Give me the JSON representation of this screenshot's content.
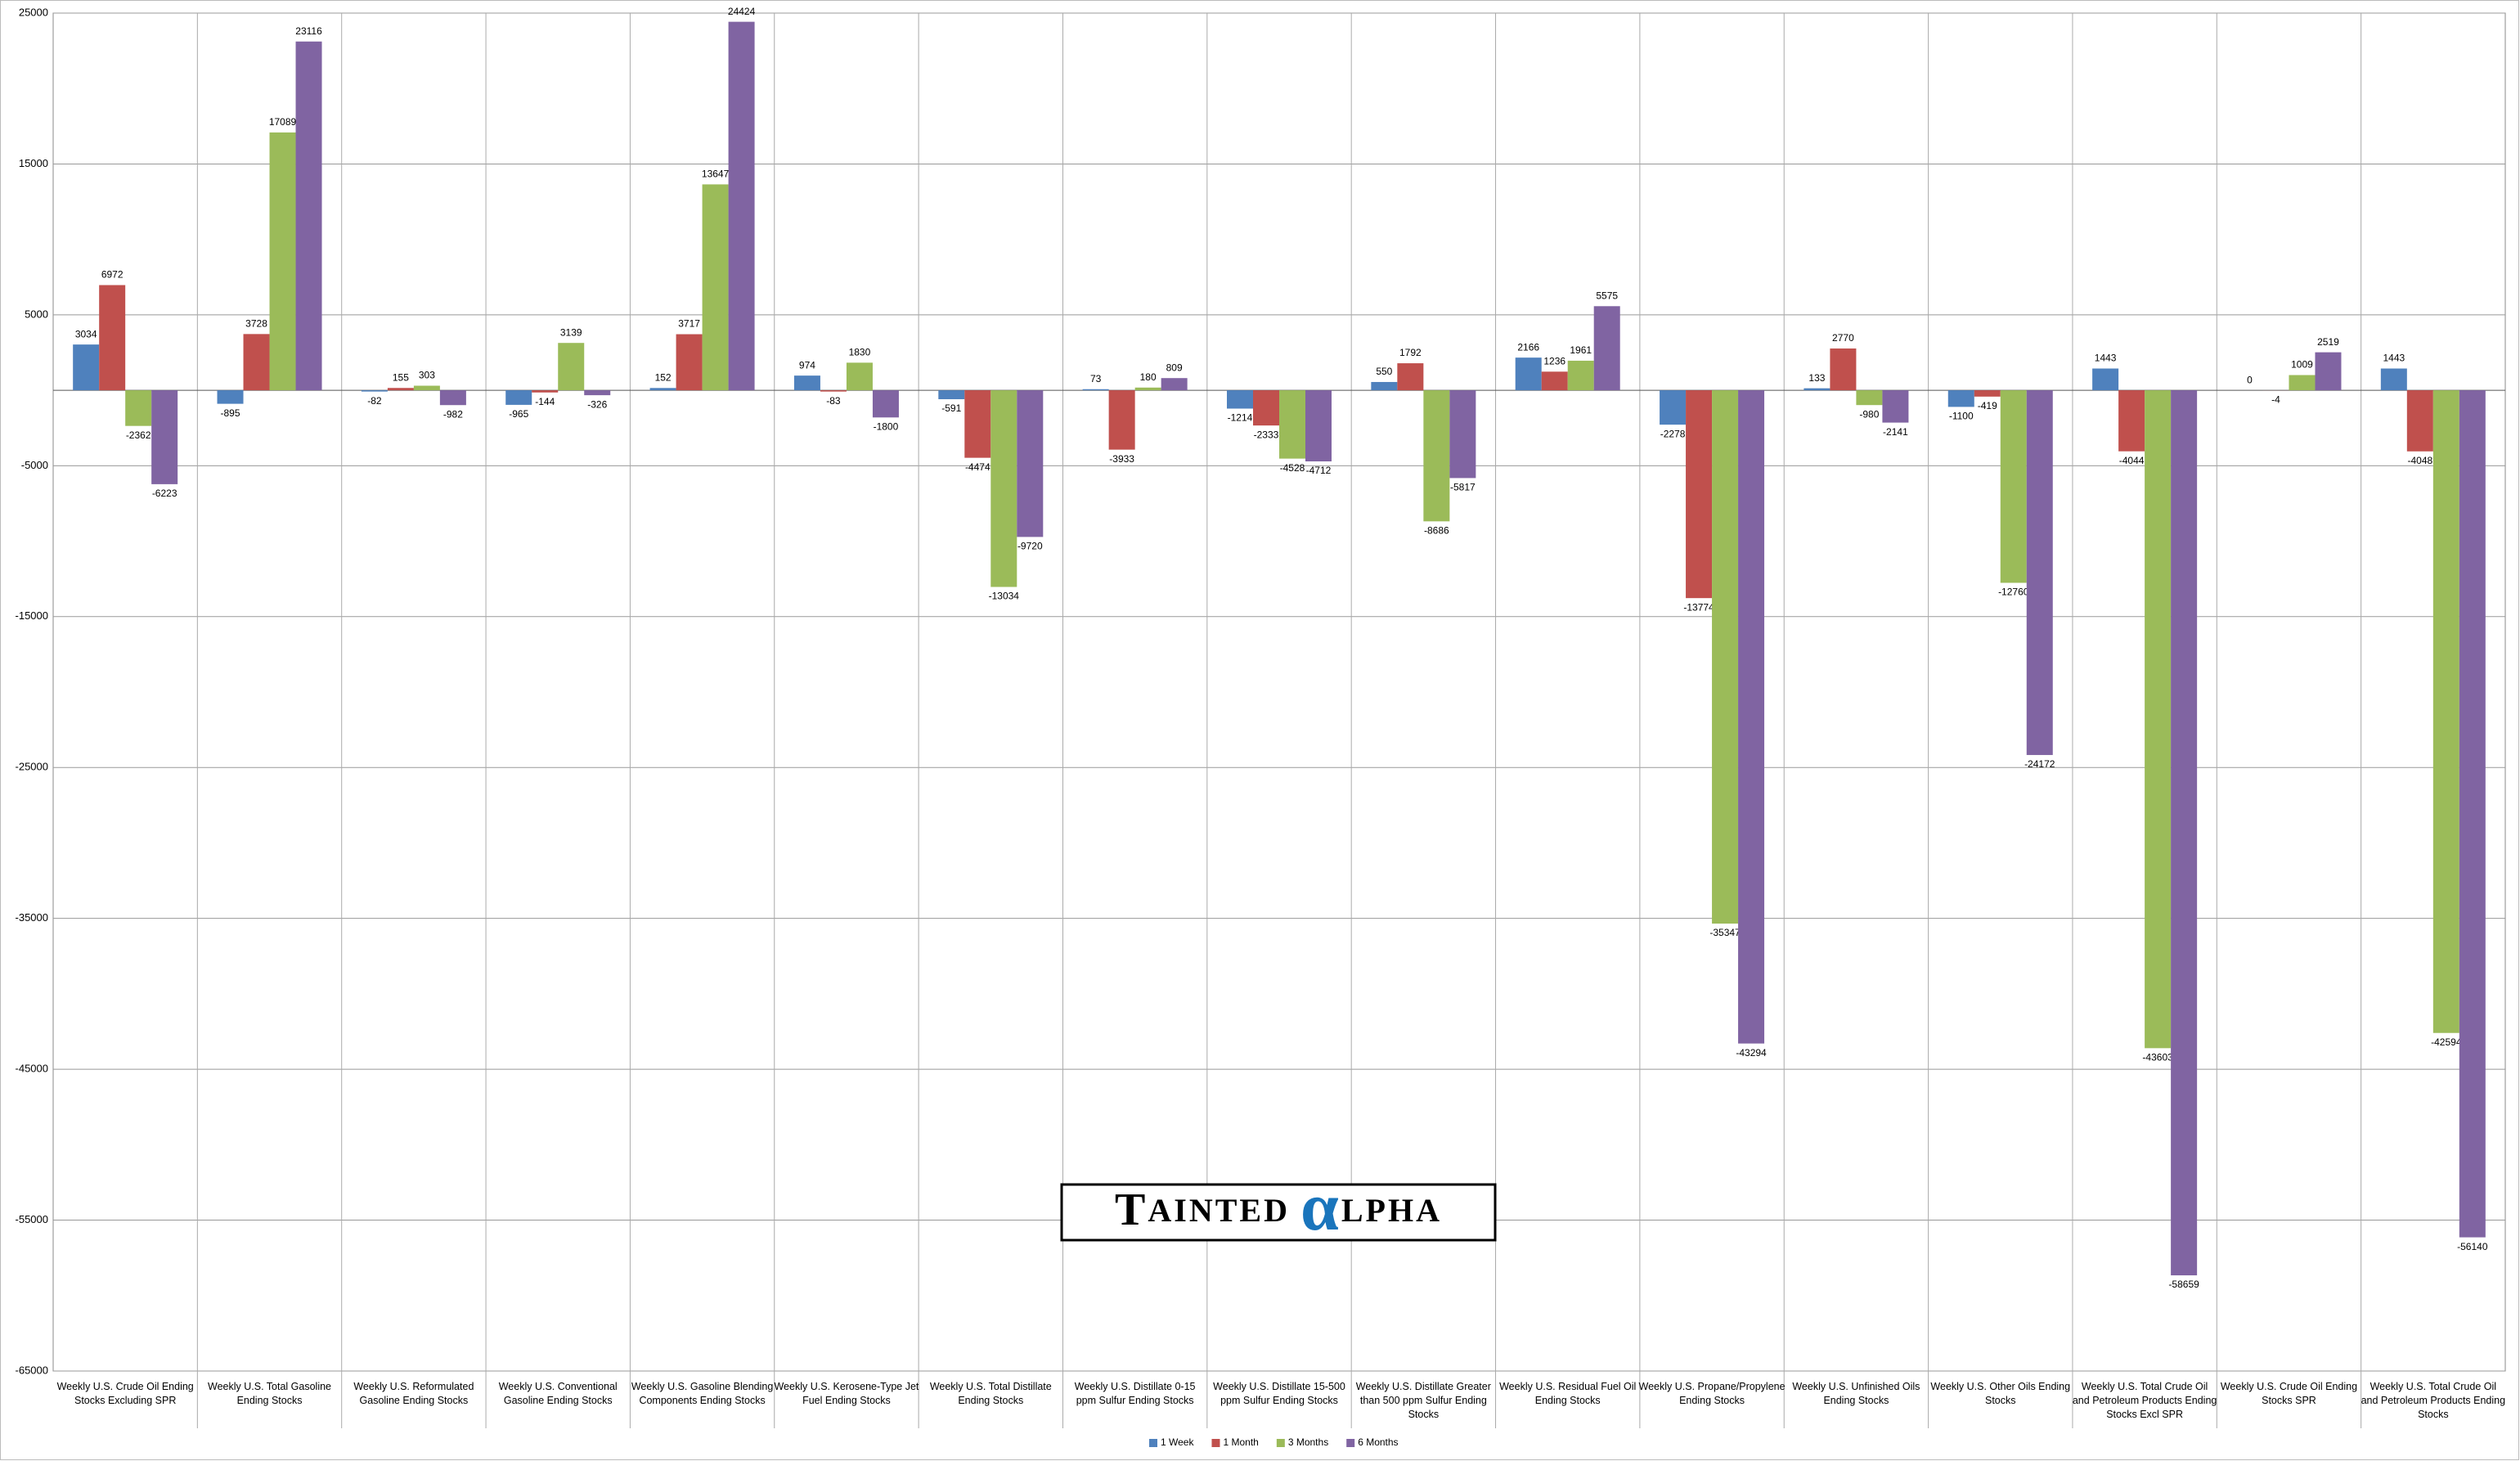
{
  "chart_data": {
    "type": "bar",
    "categories": [
      "Weekly U.S. Crude Oil Ending Stocks Excluding SPR",
      "Weekly U.S. Total Gasoline Ending Stocks",
      "Weekly U.S. Reformulated Gasoline Ending Stocks",
      "Weekly U.S. Conventional Gasoline Ending Stocks",
      "Weekly U.S. Gasoline Blending Components Ending Stocks",
      "Weekly U.S. Kerosene-Type Jet Fuel Ending Stocks",
      "Weekly U.S. Total Distillate Ending Stocks",
      "Weekly U.S. Distillate 0-15 ppm Sulfur Ending Stocks",
      "Weekly U.S. Distillate 15-500 ppm Sulfur Ending Stocks",
      "Weekly U.S. Distillate Greater than 500 ppm Sulfur Ending Stocks",
      "Weekly U.S. Residual Fuel Oil Ending Stocks",
      "Weekly U.S. Propane/Propylene Ending Stocks",
      "Weekly U.S. Unfinished Oils Ending Stocks",
      "Weekly U.S. Other Oils Ending Stocks",
      "Weekly U.S. Total Crude Oil and Petroleum Products Ending Stocks Excl SPR",
      "Weekly U.S. Crude Oil Ending Stocks SPR",
      "Weekly U.S. Total Crude Oil and Petroleum Products Ending Stocks"
    ],
    "series": [
      {
        "name": "1 Week",
        "color": "#4f81bd",
        "values": [
          3034,
          -895,
          -82,
          -965,
          152,
          974,
          -591,
          73,
          -1214,
          550,
          2166,
          -2278,
          133,
          -1100,
          1443,
          0,
          1443
        ]
      },
      {
        "name": "1 Month",
        "color": "#c0504d",
        "values": [
          6972,
          3728,
          155,
          -144,
          3717,
          -83,
          -4474,
          -3933,
          -2333,
          1792,
          1236,
          -13774,
          2770,
          -419,
          -4044,
          -4,
          -4048
        ]
      },
      {
        "name": "3 Months",
        "color": "#9bbb59",
        "values": [
          -2362,
          17089,
          303,
          3139,
          13647,
          1830,
          -13034,
          180,
          -4528,
          -8686,
          1961,
          -35347,
          -980,
          -12760,
          -43603,
          1009,
          -42594
        ]
      },
      {
        "name": "6 Months",
        "color": "#8064a2",
        "values": [
          -6223,
          23116,
          -982,
          -326,
          24424,
          -1800,
          -9720,
          809,
          -4712,
          -5817,
          5575,
          -43294,
          -2141,
          -24172,
          -58659,
          2519,
          -56140
        ]
      }
    ],
    "ylim": [
      -65000,
      25000
    ],
    "yticks": [
      -65000,
      -55000,
      -45000,
      -35000,
      -25000,
      -15000,
      -5000,
      5000,
      15000,
      25000
    ],
    "grid": true,
    "legend": "bottom",
    "watermark": [
      "T",
      "AINTED ",
      "α",
      "LPHA"
    ]
  }
}
